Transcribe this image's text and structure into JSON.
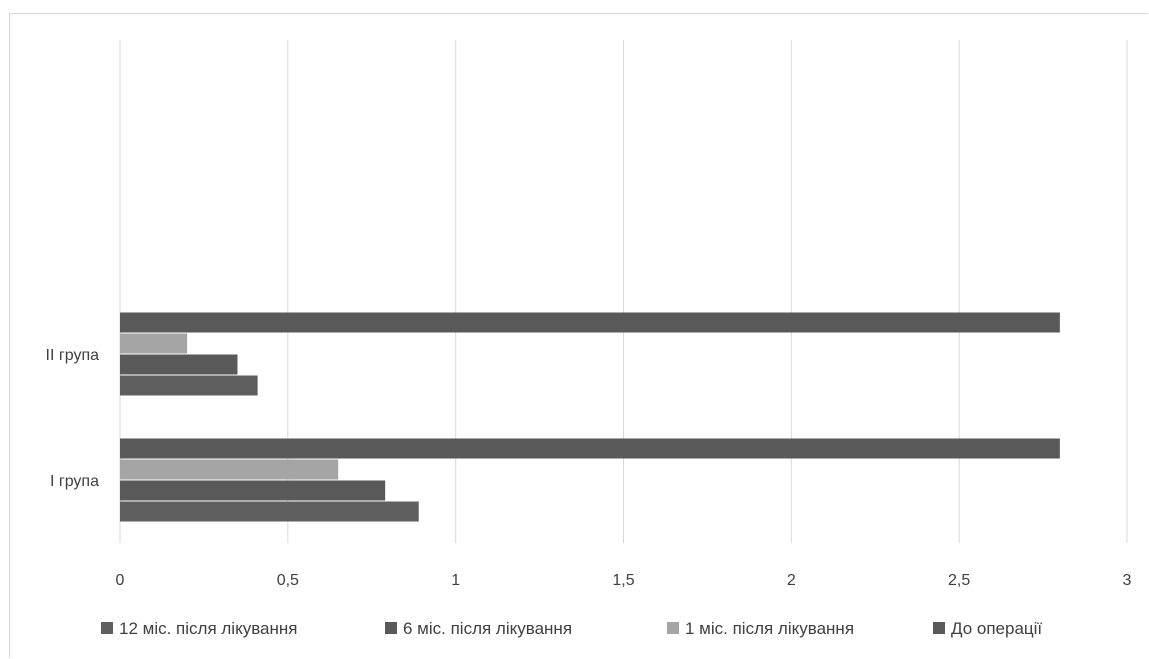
{
  "chart_data": {
    "type": "bar",
    "orientation": "horizontal",
    "categories": [
      "I група",
      "II група"
    ],
    "series": [
      {
        "name": "12 міс. після лікування",
        "values": [
          0.89,
          0.41
        ],
        "color": "#5f5f5f"
      },
      {
        "name": "6 міс. після лікування",
        "values": [
          0.79,
          0.35
        ],
        "color": "#595959"
      },
      {
        "name": "1 міс. після лікування",
        "values": [
          0.65,
          0.2
        ],
        "color": "#a5a5a5"
      },
      {
        "name": "До операції",
        "values": [
          2.8,
          2.8
        ],
        "color": "#595959"
      }
    ],
    "xlim": [
      0,
      3
    ],
    "xticks": [
      "0",
      "0,5",
      "1",
      "1,5",
      "2",
      "2,5",
      "3"
    ],
    "xtick_values": [
      0,
      0.5,
      1,
      1.5,
      2,
      2.5,
      3
    ],
    "grid": true,
    "legend_position": "bottom",
    "title": "",
    "xlabel": "",
    "ylabel": ""
  }
}
